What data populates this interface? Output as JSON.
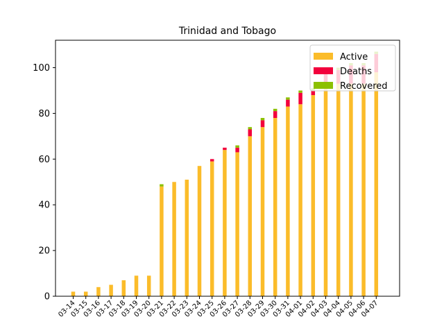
{
  "chart_data": {
    "type": "bar",
    "stacked": true,
    "title": "Trinidad and Tobago",
    "xlabel": "",
    "ylabel": "",
    "ylim": [
      0,
      112
    ],
    "yticks": [
      0,
      20,
      40,
      60,
      80,
      100
    ],
    "grid": false,
    "legend_position": "top-right",
    "categories": [
      "03-14",
      "03-15",
      "03-16",
      "03-17",
      "03-18",
      "03-19",
      "03-20",
      "03-21",
      "03-22",
      "03-23",
      "03-24",
      "03-25",
      "03-26",
      "03-27",
      "03-28",
      "03-29",
      "03-30",
      "03-31",
      "04-01",
      "04-02",
      "04-03",
      "04-04",
      "04-05",
      "04-06",
      "04-07"
    ],
    "series": [
      {
        "name": "Active",
        "color": "#fbbc2a",
        "values": [
          2,
          2,
          4,
          5,
          7,
          9,
          9,
          48,
          50,
          51,
          57,
          59,
          64,
          63,
          70,
          74,
          78,
          83,
          84,
          88,
          93,
          93,
          93,
          93,
          98
        ]
      },
      {
        "name": "Deaths",
        "color": "#f2003c",
        "values": [
          0,
          0,
          0,
          0,
          0,
          0,
          0,
          0,
          0,
          0,
          0,
          1,
          1,
          2,
          3,
          3,
          3,
          3,
          5,
          2,
          6,
          6,
          8,
          8,
          8
        ]
      },
      {
        "name": "Recovered",
        "color": "#8cc000",
        "values": [
          0,
          0,
          0,
          0,
          0,
          0,
          0,
          1,
          0,
          0,
          0,
          0,
          0,
          1,
          1,
          1,
          1,
          1,
          1,
          1,
          1,
          1,
          1,
          1,
          1
        ]
      }
    ]
  }
}
